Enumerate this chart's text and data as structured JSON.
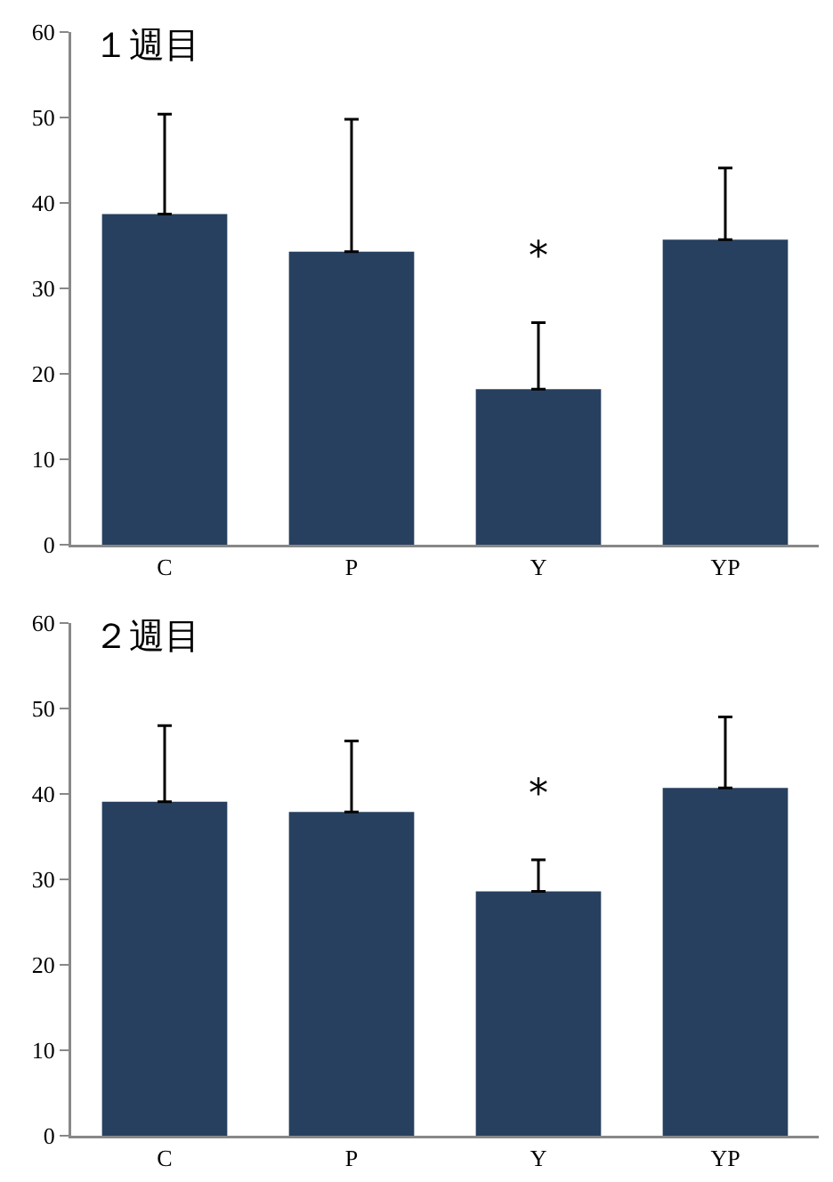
{
  "chart_data": [
    {
      "type": "bar",
      "title": "１週目",
      "categories": [
        "C",
        "P",
        "Y",
        "YP"
      ],
      "values": [
        38.7,
        34.3,
        18.2,
        35.7
      ],
      "color": "#27405f",
      "errors": [
        [
          38.7,
          50.4
        ],
        [
          34.3,
          49.8
        ],
        [
          18.2,
          26.0
        ],
        [
          35.7,
          44.1
        ]
      ],
      "ylim": [
        0,
        60
      ],
      "yticks": [
        0,
        10,
        20,
        30,
        40,
        50,
        60
      ],
      "grid": false,
      "annotations": [
        "*"
      ]
    },
    {
      "type": "bar",
      "title": "２週目",
      "categories": [
        "C",
        "P",
        "Y",
        "YP"
      ],
      "values": [
        39.1,
        37.9,
        28.6,
        40.7
      ],
      "color": "#27405f",
      "errors": [
        [
          39.1,
          48.0
        ],
        [
          37.9,
          46.2
        ],
        [
          28.6,
          32.3
        ],
        [
          40.7,
          49.0
        ]
      ],
      "ylim": [
        0,
        60
      ],
      "yticks": [
        0,
        10,
        20,
        30,
        40,
        50,
        60
      ],
      "grid": false,
      "annotations": [
        "*"
      ]
    }
  ]
}
